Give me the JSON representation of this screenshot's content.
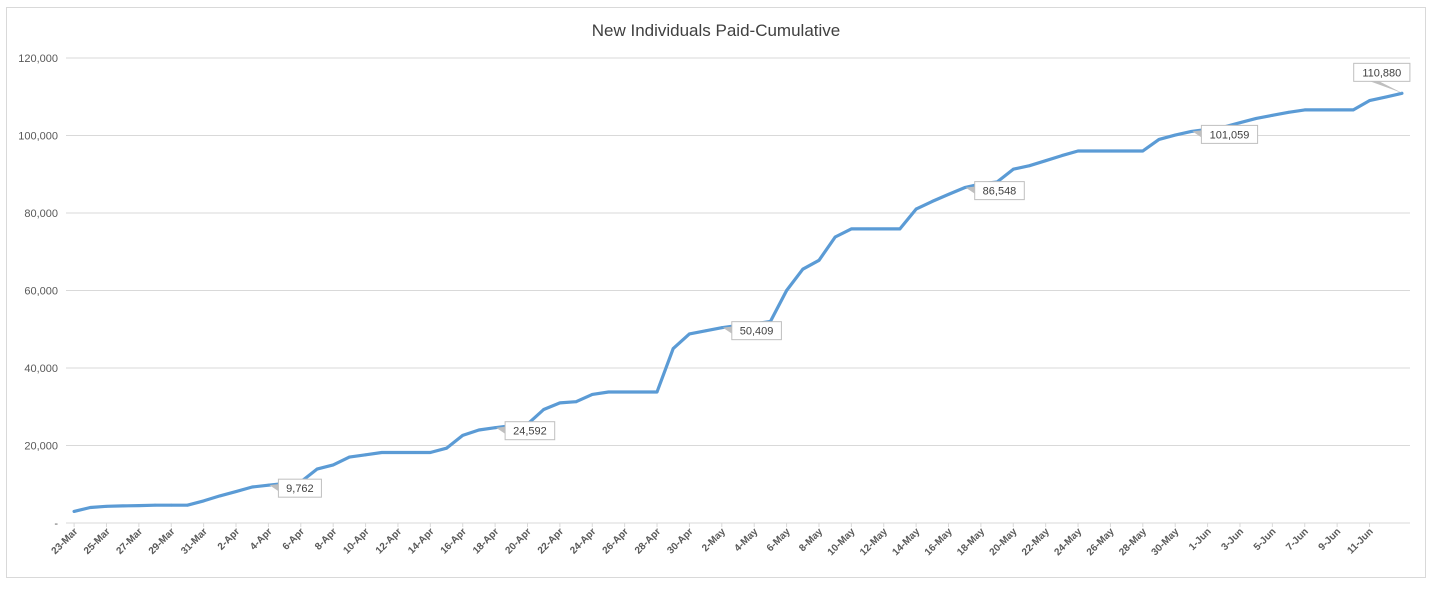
{
  "chart_data": {
    "type": "line",
    "title": "New Individuals Paid-Cumulative",
    "xlabel": "",
    "ylabel": "",
    "ylim": [
      0,
      120000
    ],
    "y_tick_values": [
      0,
      20000,
      40000,
      60000,
      80000,
      100000,
      120000
    ],
    "y_tick_labels": [
      "-",
      "20,000",
      "40,000",
      "60,000",
      "80,000",
      "100,000",
      "120,000"
    ],
    "x_tick_labels": [
      "23-Mar",
      "25-Mar",
      "27-Mar",
      "29-Mar",
      "31-Mar",
      "2-Apr",
      "4-Apr",
      "6-Apr",
      "8-Apr",
      "10-Apr",
      "12-Apr",
      "14-Apr",
      "16-Apr",
      "18-Apr",
      "20-Apr",
      "22-Apr",
      "24-Apr",
      "26-Apr",
      "28-Apr",
      "30-Apr",
      "2-May",
      "4-May",
      "6-May",
      "8-May",
      "10-May",
      "12-May",
      "14-May",
      "16-May",
      "18-May",
      "20-May",
      "22-May",
      "24-May",
      "26-May",
      "28-May",
      "30-May",
      "1-Jun",
      "3-Jun",
      "5-Jun",
      "7-Jun",
      "9-Jun",
      "11-Jun"
    ],
    "grid": true,
    "legend": false,
    "line_color": "#5b9bd5",
    "series": [
      {
        "values": [
          3000,
          4000,
          4300,
          4400,
          4500,
          4600,
          4600,
          4600,
          5700,
          7000,
          8100,
          9300,
          9762,
          10200,
          10600,
          13900,
          15000,
          17000,
          17600,
          18200,
          18200,
          18200,
          18200,
          19300,
          22600,
          24000,
          24592,
          25100,
          25500,
          29300,
          31000,
          31300,
          33200,
          33800,
          33800,
          33800,
          33800,
          45000,
          48800,
          49600,
          50409,
          51000,
          51400,
          52000,
          60000,
          65500,
          67800,
          73800,
          75900,
          75900,
          75900,
          75900,
          81000,
          83000,
          84800,
          86548,
          87500,
          88000,
          91300,
          92200,
          93500,
          94800,
          96000,
          96000,
          96000,
          96000,
          96000,
          99000,
          100100,
          101059,
          101600,
          102200,
          103300,
          104400,
          105200,
          106000,
          106600,
          106600,
          106600,
          106600,
          109000,
          109900,
          110880
        ]
      }
    ],
    "data_labels": [
      {
        "index": 12,
        "text": "9,762"
      },
      {
        "index": 26,
        "text": "24,592"
      },
      {
        "index": 40,
        "text": "50,409"
      },
      {
        "index": 55,
        "text": "86,548"
      },
      {
        "index": 69,
        "text": "101,059"
      },
      {
        "index": 82,
        "text": "110,880"
      }
    ]
  }
}
